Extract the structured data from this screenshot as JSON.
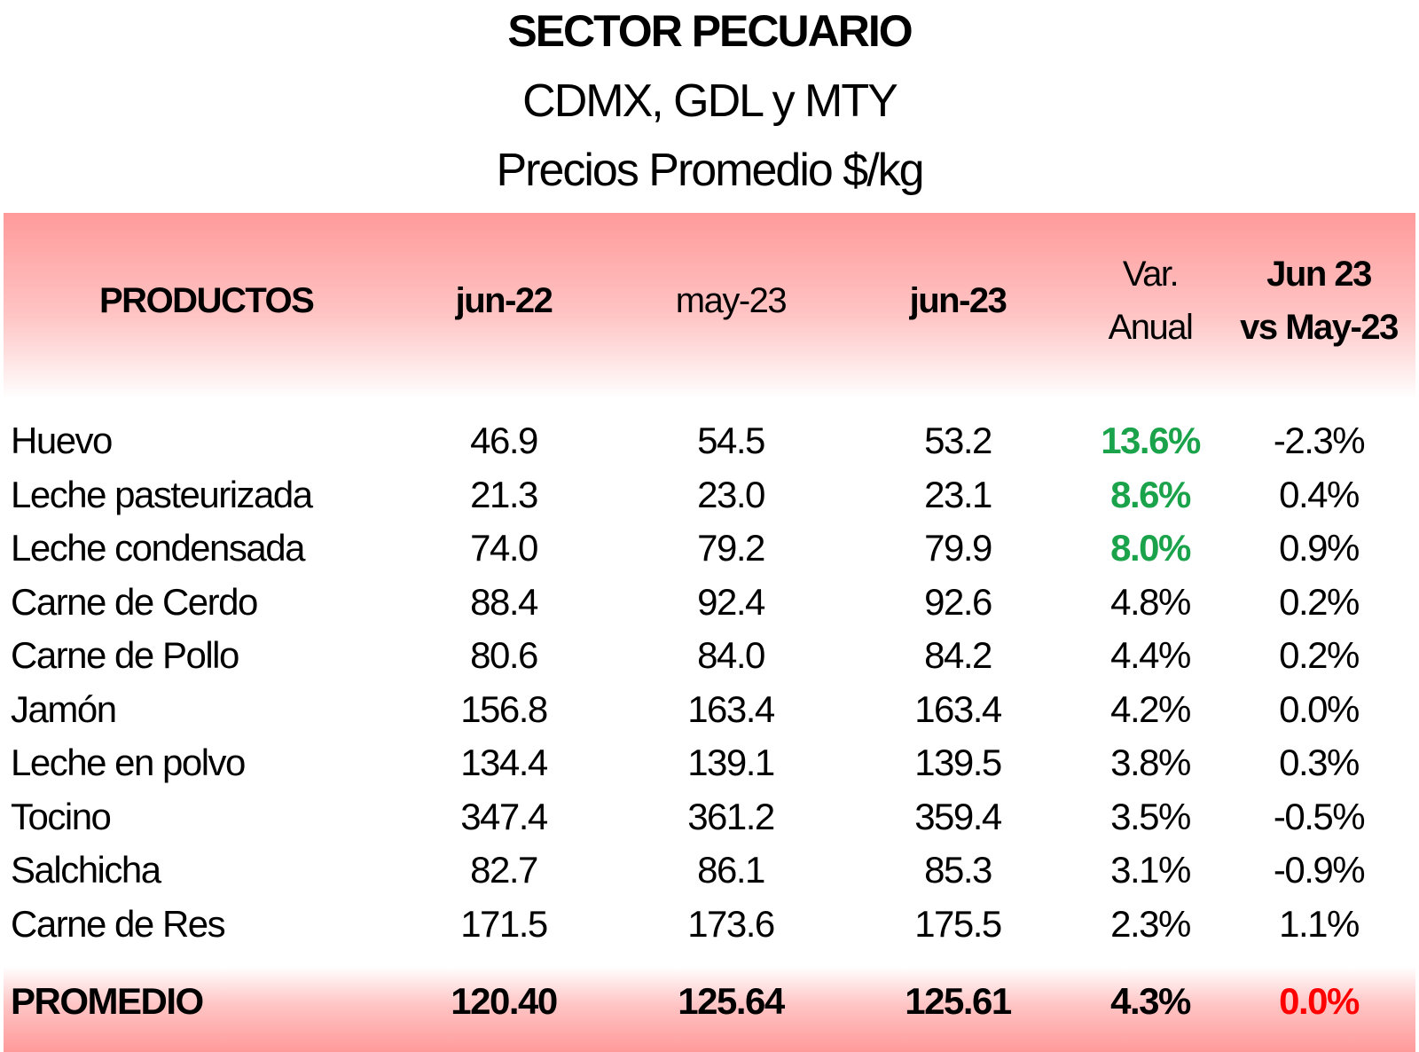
{
  "title": "SECTOR PECUARIO",
  "subtitle1": "CDMX, GDL y MTY",
  "subtitle2": "Precios Promedio $/kg",
  "headers": {
    "productos": "PRODUCTOS",
    "jun22": "jun-22",
    "may23": "may-23",
    "jun23": "jun-23",
    "var_line1": "Var.",
    "var_line2": "Anual",
    "cmp_line1": "Jun 23",
    "cmp_line2": "vs May-23"
  },
  "colors": {
    "header_band": "#ff9a9a",
    "highlight_green": "#1aa34a",
    "highlight_red": "#ff0000"
  },
  "chart_data": {
    "type": "table",
    "columns": [
      "PRODUCTOS",
      "jun-22",
      "may-23",
      "jun-23",
      "Var. Anual",
      "Jun 23 vs May-23"
    ],
    "rows": [
      {
        "producto": "Huevo",
        "jun22": "46.9",
        "may23": "54.5",
        "jun23": "53.2",
        "var_anual": "13.6%",
        "jun_vs_may": "-2.3%",
        "var_highlight": "green"
      },
      {
        "producto": "Leche pasteurizada",
        "jun22": "21.3",
        "may23": "23.0",
        "jun23": "23.1",
        "var_anual": "8.6%",
        "jun_vs_may": "0.4%",
        "var_highlight": "green"
      },
      {
        "producto": "Leche condensada",
        "jun22": "74.0",
        "may23": "79.2",
        "jun23": "79.9",
        "var_anual": "8.0%",
        "jun_vs_may": "0.9%",
        "var_highlight": "green"
      },
      {
        "producto": "Carne de Cerdo",
        "jun22": "88.4",
        "may23": "92.4",
        "jun23": "92.6",
        "var_anual": "4.8%",
        "jun_vs_may": "0.2%",
        "var_highlight": ""
      },
      {
        "producto": "Carne de Pollo",
        "jun22": "80.6",
        "may23": "84.0",
        "jun23": "84.2",
        "var_anual": "4.4%",
        "jun_vs_may": "0.2%",
        "var_highlight": ""
      },
      {
        "producto": "Jamón",
        "jun22": "156.8",
        "may23": "163.4",
        "jun23": "163.4",
        "var_anual": "4.2%",
        "jun_vs_may": "0.0%",
        "var_highlight": ""
      },
      {
        "producto": "Leche en polvo",
        "jun22": "134.4",
        "may23": "139.1",
        "jun23": "139.5",
        "var_anual": "3.8%",
        "jun_vs_may": "0.3%",
        "var_highlight": ""
      },
      {
        "producto": "Tocino",
        "jun22": "347.4",
        "may23": "361.2",
        "jun23": "359.4",
        "var_anual": "3.5%",
        "jun_vs_may": "-0.5%",
        "var_highlight": ""
      },
      {
        "producto": "Salchicha",
        "jun22": "82.7",
        "may23": "86.1",
        "jun23": "85.3",
        "var_anual": "3.1%",
        "jun_vs_may": "-0.9%",
        "var_highlight": ""
      },
      {
        "producto": "Carne de Res",
        "jun22": "171.5",
        "may23": "173.6",
        "jun23": "175.5",
        "var_anual": "2.3%",
        "jun_vs_may": "1.1%",
        "var_highlight": ""
      }
    ],
    "total": {
      "producto": "PROMEDIO",
      "jun22": "120.40",
      "may23": "125.64",
      "jun23": "125.61",
      "var_anual": "4.3%",
      "jun_vs_may": "0.0%"
    }
  }
}
